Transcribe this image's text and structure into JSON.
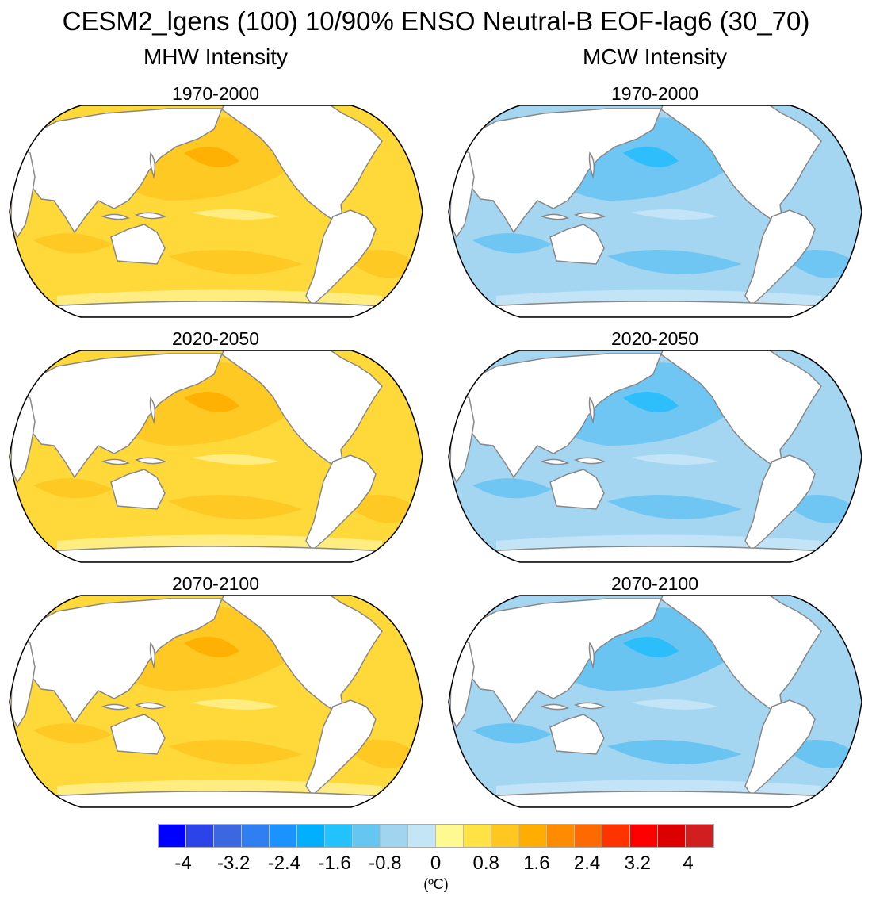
{
  "title": "CESM2_lgens (100) 10/90% ENSO Neutral-B EOF-lag6 (30_70)",
  "columns": [
    {
      "title": "MHW Intensity",
      "palette": {
        "base": "#ffd83a",
        "mid": "#ffc822",
        "strong": "#ffae00",
        "hot": "#ff8c00",
        "light": "#fff08a"
      }
    },
    {
      "title": "MCW Intensity",
      "palette": {
        "base": "#a4d5f1",
        "mid": "#69c4f2",
        "strong": "#26bdfc",
        "hot": "#1b90ff",
        "light": "#c6e6f6"
      }
    }
  ],
  "periods": [
    "1970-2000",
    "2020-2050",
    "2070-2100"
  ],
  "colorbar": {
    "colors": [
      "#4a14ff",
      "#0000ff",
      "#2b43e8",
      "#3b67e0",
      "#2f7ff2",
      "#1a93ff",
      "#00b0ff",
      "#22c2fc",
      "#66c6f2",
      "#a1d4ef",
      "#c4e5f5",
      "#fff991",
      "#ffe344",
      "#ffc71f",
      "#ffae00",
      "#ff8c00",
      "#ff6a00",
      "#ff3300",
      "#ff0000",
      "#dc0000",
      "#d11e1e",
      "#f07878"
    ],
    "labels": [
      "-4",
      "-3.2",
      "-2.4",
      "-1.6",
      "-0.8",
      "0",
      "0.8",
      "1.6",
      "2.4",
      "3.2",
      "4"
    ],
    "unit": "(ºC)"
  }
}
